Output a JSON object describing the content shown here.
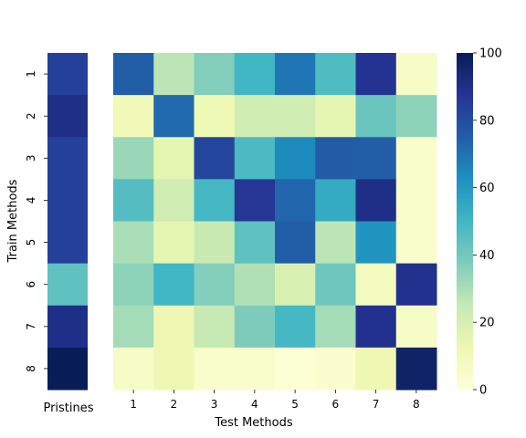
{
  "chart_data": {
    "type": "heatmap",
    "colormap": "YlGnBu",
    "xlabel": "Test Methods",
    "ylabel": "Train Methods",
    "x_categories": [
      "1",
      "2",
      "3",
      "4",
      "5",
      "6",
      "7",
      "8"
    ],
    "y_categories": [
      "1",
      "2",
      "3",
      "4",
      "5",
      "6",
      "7",
      "8"
    ],
    "values": [
      [
        75,
        27,
        37,
        50,
        69,
        47,
        88,
        6
      ],
      [
        10,
        72,
        11,
        22,
        22,
        15,
        42,
        35
      ],
      [
        33,
        15,
        82,
        48,
        64,
        76,
        75,
        4
      ],
      [
        46,
        22,
        49,
        87,
        73,
        54,
        90,
        4
      ],
      [
        30,
        15,
        24,
        44,
        75,
        27,
        61,
        4
      ],
      [
        35,
        50,
        37,
        29,
        19,
        41,
        8,
        89
      ],
      [
        31,
        12,
        25,
        38,
        49,
        31,
        89,
        6
      ],
      [
        6,
        12,
        4,
        4,
        2,
        3,
        12,
        97
      ]
    ],
    "pristine_label": "Pristines",
    "pristine_values": [
      84,
      90,
      84,
      84,
      84,
      44,
      90,
      100
    ],
    "colorbar": {
      "min": 0,
      "max": 100,
      "ticks": [
        "0",
        "20",
        "40",
        "60",
        "80",
        "100"
      ]
    }
  }
}
